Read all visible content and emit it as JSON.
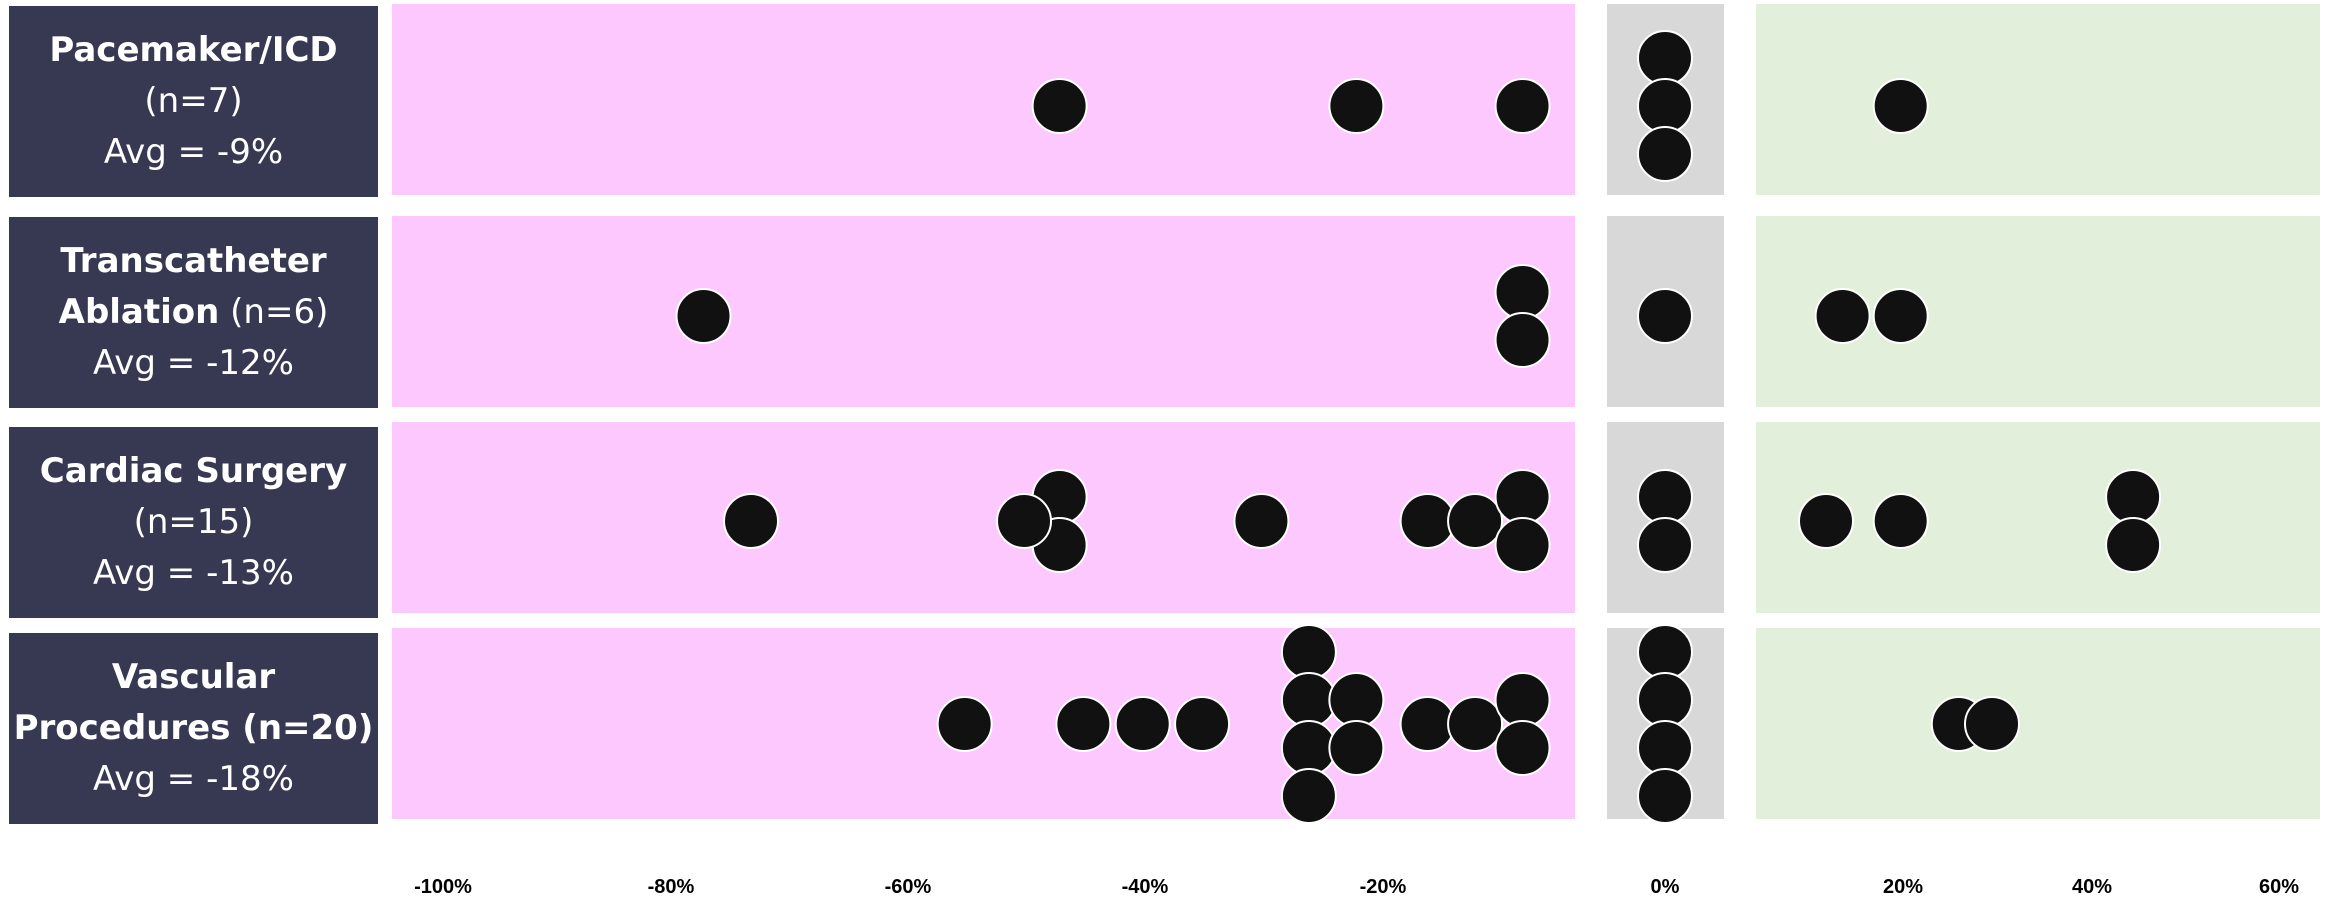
{
  "chart_data": {
    "type": "scatter",
    "title": "",
    "xlabel": "",
    "ylabel": "",
    "xlim": [
      -100,
      60
    ],
    "x_ticks": [
      "-100%",
      "-80%",
      "-60%",
      "-40%",
      "-20%",
      "0%",
      "20%",
      "40%",
      "60%"
    ],
    "zones": [
      {
        "name": "negative",
        "color": "#fdc8fd"
      },
      {
        "name": "zero",
        "color": "#d8d8d8"
      },
      {
        "name": "positive",
        "color": "#e2efda"
      }
    ],
    "point_color": "#111111",
    "series": [
      {
        "title_bold": "Pacemaker/ICD",
        "count_text": "(n=7)",
        "avg_text": "Avg = -9%",
        "values": [
          -51,
          -26,
          -12,
          0,
          0,
          0,
          19
        ]
      },
      {
        "title_bold_1": "Transcatheter",
        "title_bold_2": "Ablation",
        "count_text": "(n=6)",
        "avg_text": "Avg = -12%",
        "values": [
          -81,
          -12,
          -12,
          0,
          12,
          19
        ]
      },
      {
        "title_bold": "Cardiac Surgery",
        "count_text": "(n=15)",
        "avg_text": "Avg = -13%",
        "values": [
          -77,
          -51,
          -51,
          -54,
          -34,
          -20,
          -16,
          -12,
          -12,
          0,
          0,
          10,
          19,
          47,
          47
        ]
      },
      {
        "title_bold_1": "Vascular",
        "title_bold_2": "Procedures (n=20)",
        "avg_text": "Avg = -18%",
        "values": [
          -59,
          -49,
          -44,
          -39,
          -30,
          -30,
          -30,
          -30,
          -26,
          -26,
          -20,
          -16,
          -12,
          -12,
          0,
          0,
          0,
          0,
          26,
          30
        ]
      }
    ]
  }
}
